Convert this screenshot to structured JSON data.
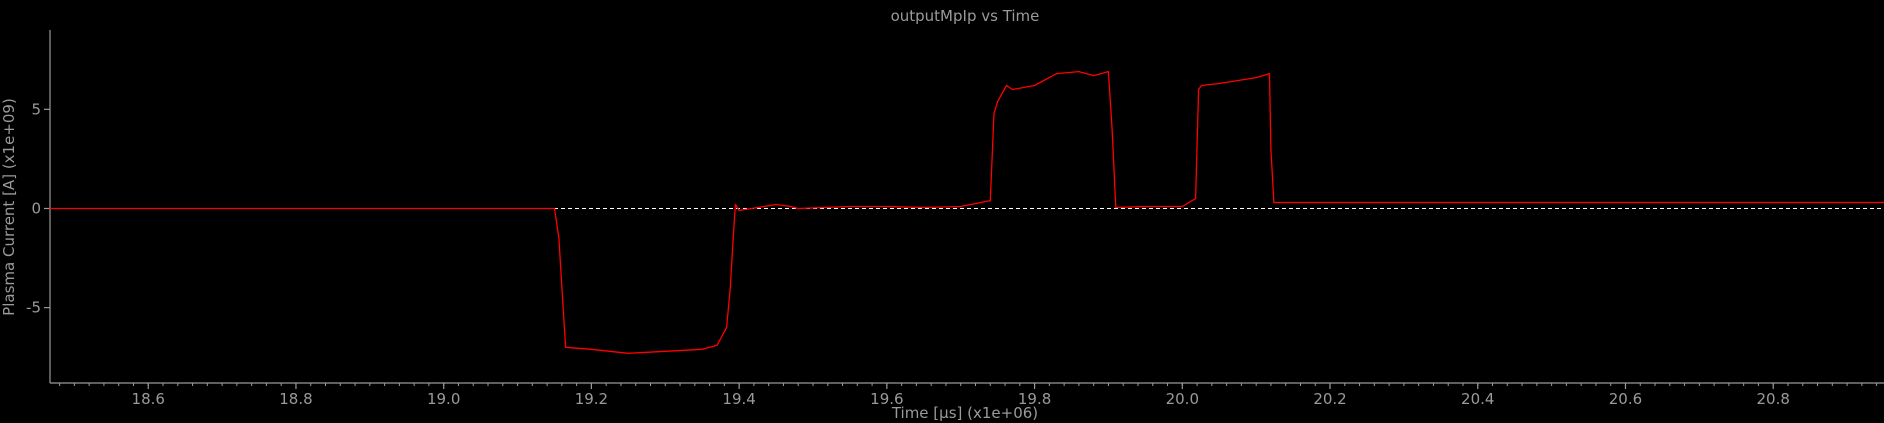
{
  "chart_data": {
    "type": "line",
    "title": "outputMpIp vs Time",
    "xlabel": "Time [µs] (x1e+06)",
    "ylabel": "Plasma Current [A] (x1e+09)",
    "xlim": [
      18.467,
      20.95
    ],
    "ylim": [
      -8.8,
      9.0
    ],
    "x_ticks": [
      "18.6",
      "18.8",
      "19.0",
      "19.2",
      "19.4",
      "19.6",
      "19.8",
      "20.0",
      "20.2",
      "20.4",
      "20.6",
      "20.8"
    ],
    "x_tick_values": [
      18.6,
      18.8,
      19.0,
      19.2,
      19.4,
      19.6,
      19.8,
      20.0,
      20.2,
      20.4,
      20.6,
      20.8
    ],
    "y_ticks": [
      "-5",
      "0",
      "5"
    ],
    "y_tick_values": [
      -5,
      0,
      5
    ],
    "grid": false,
    "reference_line": {
      "y": 0,
      "color": "#ffffff",
      "style": "dashed"
    },
    "series": [
      {
        "color": "#ff0000",
        "x": [
          18.467,
          19.15,
          19.156,
          19.16,
          19.165,
          19.2,
          19.25,
          19.3,
          19.35,
          19.37,
          19.383,
          19.388,
          19.392,
          19.395,
          19.4,
          19.45,
          19.47,
          19.48,
          19.55,
          19.6,
          19.65,
          19.7,
          19.74,
          19.745,
          19.75,
          19.762,
          19.77,
          19.8,
          19.83,
          19.86,
          19.88,
          19.9,
          19.905,
          19.91,
          19.95,
          20.0,
          20.018,
          20.022,
          20.026,
          20.05,
          20.1,
          20.118,
          20.12,
          20.124,
          20.2,
          20.5,
          20.95
        ],
        "y": [
          0.0,
          0.0,
          -1.5,
          -4.0,
          -7.0,
          -7.1,
          -7.3,
          -7.2,
          -7.1,
          -6.9,
          -6.0,
          -4.0,
          -1.5,
          0.2,
          -0.1,
          0.2,
          0.1,
          0.0,
          0.1,
          0.1,
          0.05,
          0.1,
          0.4,
          4.8,
          5.4,
          6.2,
          6.0,
          6.2,
          6.8,
          6.9,
          6.7,
          6.9,
          4.0,
          0.05,
          0.1,
          0.1,
          0.5,
          6.0,
          6.2,
          6.3,
          6.6,
          6.8,
          3.0,
          0.3,
          0.3,
          0.3,
          0.3
        ]
      }
    ]
  }
}
